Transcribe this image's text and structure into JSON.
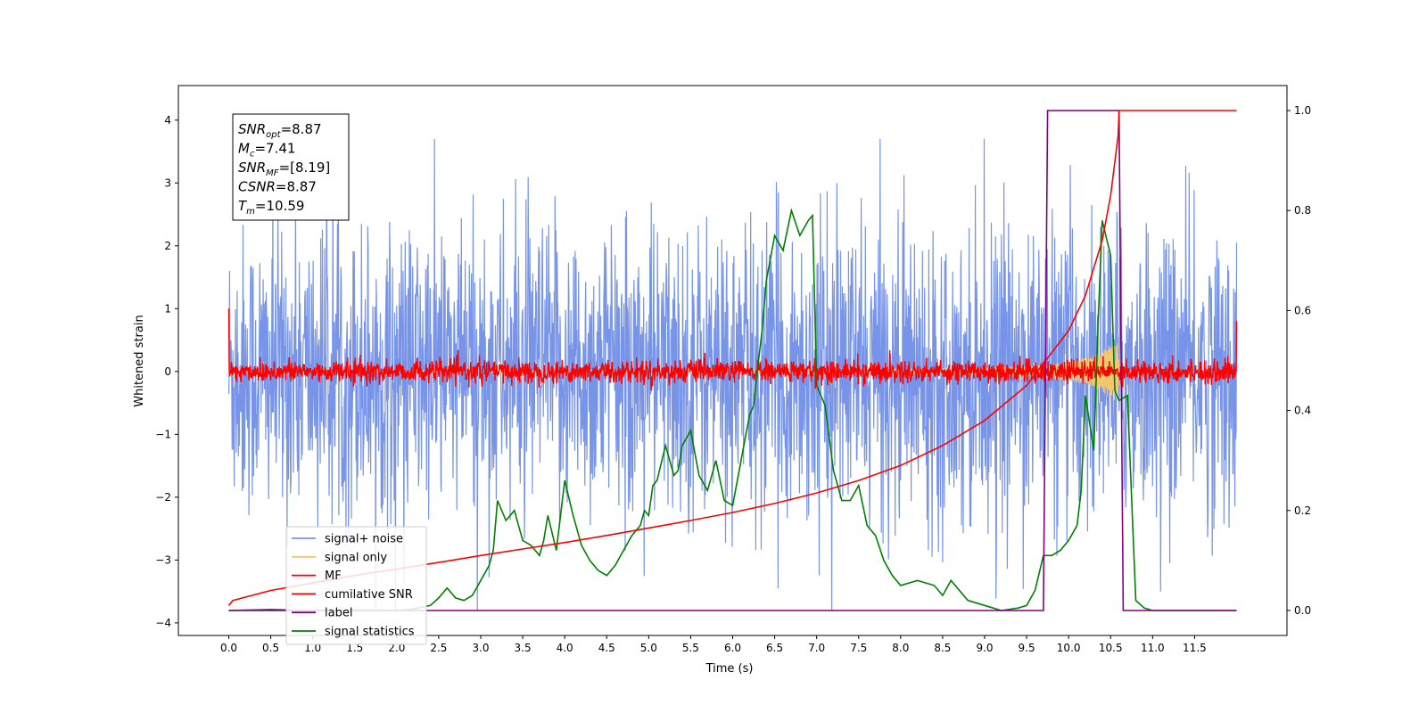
{
  "chart_data": {
    "type": "line",
    "xlabel": "Time (s)",
    "ylabel": "Whitened strain",
    "xlim": [
      -0.6,
      12.6
    ],
    "ylim": [
      -4.2,
      4.55
    ],
    "ylim_right": [
      -0.05,
      1.05
    ],
    "xticks": [
      "0.0",
      "0.5",
      "1.0",
      "1.5",
      "2.0",
      "2.5",
      "3.0",
      "3.5",
      "4.0",
      "4.5",
      "5.0",
      "5.5",
      "6.0",
      "6.5",
      "7.0",
      "7.5",
      "8.0",
      "8.5",
      "9.0",
      "9.5",
      "10.0",
      "10.5",
      "11.0",
      "11.5"
    ],
    "yticks_left": [
      "−4",
      "−3",
      "−2",
      "−1",
      "0",
      "1",
      "2",
      "3",
      "4"
    ],
    "yticks_right": [
      "0.0",
      "0.2",
      "0.4",
      "0.6",
      "0.8",
      "1.0"
    ],
    "grid": false,
    "legend_position": "lower-left",
    "info_box": [
      {
        "sym": "SNR",
        "sub": "opt",
        "value": "=8.87"
      },
      {
        "sym": "M",
        "sub": "c",
        "value": "=7.41"
      },
      {
        "sym": "SNR",
        "sub": "MF",
        "value": "=[8.19]"
      },
      {
        "sym": "CSNR",
        "sub": "",
        "value": "=8.87"
      },
      {
        "sym": "T",
        "sub": "m",
        "value": "=10.59"
      }
    ],
    "series": [
      {
        "name": "signal+ noise",
        "color": "#7794e8",
        "axis": "left",
        "x_range": [
          0,
          12
        ],
        "envelope": [
          -2.6,
          2.7
        ],
        "note_peaks": [
          3.7,
          -3.8
        ]
      },
      {
        "name": "signal only",
        "color": "#f3c770",
        "axis": "left",
        "x_range": [
          0,
          12
        ],
        "envelope": {
          "x": [
            0,
            9.0,
            9.5,
            10.0,
            10.3,
            10.59,
            10.6,
            12
          ],
          "amp": [
            0.0,
            0.05,
            0.08,
            0.14,
            0.25,
            0.5,
            0.0,
            0.0
          ]
        }
      },
      {
        "name": "MF",
        "color": "#ff0000",
        "axis": "left",
        "x_range": [
          0,
          12
        ],
        "envelope": [
          -0.2,
          0.3
        ]
      },
      {
        "name": "cumilative SNR",
        "color": "#ff0000",
        "axis": "right",
        "x": [
          0.0,
          0.05,
          0.5,
          1.0,
          1.5,
          2.0,
          2.5,
          3.0,
          3.5,
          4.0,
          4.5,
          5.0,
          5.5,
          6.0,
          6.5,
          7.0,
          7.5,
          8.0,
          8.5,
          9.0,
          9.5,
          10.0,
          10.2,
          10.4,
          10.5,
          10.59,
          10.6,
          12.0
        ],
        "y": [
          0.01,
          0.02,
          0.04,
          0.055,
          0.07,
          0.083,
          0.096,
          0.11,
          0.123,
          0.136,
          0.15,
          0.165,
          0.18,
          0.196,
          0.214,
          0.235,
          0.26,
          0.29,
          0.33,
          0.38,
          0.45,
          0.56,
          0.63,
          0.74,
          0.83,
          0.95,
          1.0,
          1.0
        ]
      },
      {
        "name": "label",
        "color": "#800080",
        "axis": "right",
        "x": [
          0.0,
          9.7,
          9.75,
          10.6,
          10.65,
          12.0
        ],
        "y": [
          0.0,
          0.0,
          1.0,
          1.0,
          0.0,
          0.0
        ]
      },
      {
        "name": "signal statistics",
        "color": "#008000",
        "axis": "right",
        "x": [
          0.0,
          0.5,
          1.0,
          1.5,
          2.0,
          2.2,
          2.4,
          2.5,
          2.6,
          2.7,
          2.8,
          2.9,
          3.0,
          3.1,
          3.15,
          3.2,
          3.3,
          3.4,
          3.5,
          3.6,
          3.7,
          3.75,
          3.8,
          3.9,
          4.0,
          4.1,
          4.2,
          4.3,
          4.4,
          4.5,
          4.6,
          4.7,
          4.8,
          4.9,
          4.95,
          5.0,
          5.05,
          5.1,
          5.2,
          5.3,
          5.35,
          5.4,
          5.5,
          5.6,
          5.7,
          5.8,
          5.9,
          6.0,
          6.1,
          6.2,
          6.25,
          6.3,
          6.35,
          6.4,
          6.5,
          6.6,
          6.7,
          6.8,
          6.9,
          6.95,
          7.0,
          7.1,
          7.2,
          7.3,
          7.4,
          7.5,
          7.6,
          7.7,
          7.8,
          7.9,
          8.0,
          8.2,
          8.4,
          8.5,
          8.6,
          8.8,
          9.0,
          9.2,
          9.4,
          9.5,
          9.6,
          9.7,
          9.8,
          9.9,
          10.0,
          10.1,
          10.15,
          10.2,
          10.3,
          10.35,
          10.4,
          10.5,
          10.55,
          10.6,
          10.7,
          10.8,
          10.9,
          11.0,
          11.2,
          11.5,
          12.0
        ],
        "y": [
          0.0,
          0.002,
          0.0,
          0.001,
          0.0,
          0.003,
          0.01,
          0.025,
          0.045,
          0.025,
          0.02,
          0.03,
          0.06,
          0.09,
          0.12,
          0.22,
          0.18,
          0.2,
          0.14,
          0.13,
          0.11,
          0.14,
          0.19,
          0.12,
          0.26,
          0.19,
          0.13,
          0.1,
          0.08,
          0.07,
          0.09,
          0.12,
          0.15,
          0.17,
          0.2,
          0.19,
          0.25,
          0.26,
          0.33,
          0.27,
          0.28,
          0.33,
          0.36,
          0.27,
          0.24,
          0.3,
          0.22,
          0.21,
          0.3,
          0.39,
          0.41,
          0.49,
          0.56,
          0.66,
          0.75,
          0.72,
          0.8,
          0.75,
          0.78,
          0.79,
          0.45,
          0.41,
          0.28,
          0.22,
          0.22,
          0.25,
          0.17,
          0.15,
          0.1,
          0.07,
          0.05,
          0.06,
          0.05,
          0.03,
          0.06,
          0.02,
          0.01,
          0.0,
          0.005,
          0.01,
          0.04,
          0.11,
          0.11,
          0.12,
          0.14,
          0.17,
          0.24,
          0.43,
          0.32,
          0.57,
          0.78,
          0.71,
          0.44,
          0.42,
          0.43,
          0.02,
          0.005,
          0.0,
          0.0,
          0.0,
          0.0
        ]
      }
    ]
  }
}
